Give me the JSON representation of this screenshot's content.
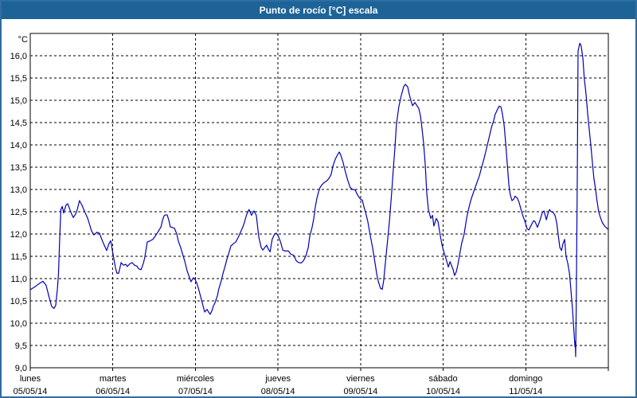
{
  "window": {
    "title": "Punto de rocío [°C] escala"
  },
  "colors": {
    "titlebar": "#1e6398",
    "border": "#2e6da0",
    "line": "#0000b4",
    "grid": "#000000",
    "text": "#000000"
  },
  "chart_data": {
    "type": "line",
    "title": "Punto de rocío [°C] escala",
    "y_unit_label": "°C",
    "ylim": [
      9.0,
      16.5
    ],
    "y_tick_step": 0.5,
    "y_tick_labels": [
      "16,0",
      "15,5",
      "15,0",
      "14,5",
      "14,0",
      "13,5",
      "13,0",
      "12,5",
      "12,0",
      "11,5",
      "11,0",
      "10,5",
      "10,0",
      "9,5",
      "9,0"
    ],
    "x_days": [
      {
        "name": "lunes",
        "date": "05/05/14"
      },
      {
        "name": "martes",
        "date": "06/05/14"
      },
      {
        "name": "miércoles",
        "date": "07/05/14"
      },
      {
        "name": "jueves",
        "date": "08/05/14"
      },
      {
        "name": "viernes",
        "date": "09/05/14"
      },
      {
        "name": "sábado",
        "date": "10/05/14"
      },
      {
        "name": "domingo",
        "date": "11/05/14"
      }
    ],
    "x_hours_total": 168,
    "grid": "dashed",
    "legend": "none",
    "series": [
      {
        "name": "Punto de rocío [°C]",
        "points": [
          [
            0.0,
            10.75
          ],
          [
            1.4,
            10.82
          ],
          [
            2.8,
            10.9
          ],
          [
            3.7,
            10.94
          ],
          [
            4.6,
            10.85
          ],
          [
            5.6,
            10.55
          ],
          [
            6.2,
            10.38
          ],
          [
            6.9,
            10.33
          ],
          [
            7.4,
            10.4
          ],
          [
            7.9,
            10.78
          ],
          [
            8.2,
            11.1
          ],
          [
            8.6,
            12.0
          ],
          [
            8.9,
            12.55
          ],
          [
            9.3,
            12.62
          ],
          [
            9.7,
            12.47
          ],
          [
            10.4,
            12.65
          ],
          [
            10.9,
            12.68
          ],
          [
            11.6,
            12.53
          ],
          [
            12.0,
            12.45
          ],
          [
            12.5,
            12.37
          ],
          [
            13.2,
            12.45
          ],
          [
            13.7,
            12.56
          ],
          [
            14.3,
            12.75
          ],
          [
            15.0,
            12.65
          ],
          [
            16.0,
            12.47
          ],
          [
            16.7,
            12.35
          ],
          [
            17.1,
            12.25
          ],
          [
            17.8,
            12.07
          ],
          [
            18.5,
            11.98
          ],
          [
            19.4,
            12.04
          ],
          [
            20.1,
            12.02
          ],
          [
            21.1,
            11.82
          ],
          [
            21.8,
            11.7
          ],
          [
            22.2,
            11.63
          ],
          [
            22.9,
            11.79
          ],
          [
            23.4,
            11.85
          ],
          [
            23.8,
            11.66
          ],
          [
            24.0,
            11.57
          ],
          [
            24.8,
            11.23
          ],
          [
            25.2,
            11.12
          ],
          [
            25.7,
            11.12
          ],
          [
            26.4,
            11.36
          ],
          [
            27.1,
            11.3
          ],
          [
            27.8,
            11.32
          ],
          [
            28.2,
            11.27
          ],
          [
            28.9,
            11.33
          ],
          [
            29.6,
            11.36
          ],
          [
            30.3,
            11.3
          ],
          [
            31.0,
            11.28
          ],
          [
            31.5,
            11.22
          ],
          [
            32.2,
            11.2
          ],
          [
            32.9,
            11.35
          ],
          [
            33.3,
            11.48
          ],
          [
            34.0,
            11.82
          ],
          [
            34.9,
            11.85
          ],
          [
            35.6,
            11.88
          ],
          [
            36.3,
            11.95
          ],
          [
            37.3,
            12.07
          ],
          [
            38.0,
            12.16
          ],
          [
            38.4,
            12.3
          ],
          [
            38.9,
            12.41
          ],
          [
            39.3,
            12.43
          ],
          [
            39.8,
            12.43
          ],
          [
            40.3,
            12.3
          ],
          [
            40.7,
            12.16
          ],
          [
            41.2,
            12.15
          ],
          [
            41.9,
            12.13
          ],
          [
            42.6,
            12.0
          ],
          [
            43.0,
            11.85
          ],
          [
            43.7,
            11.7
          ],
          [
            44.2,
            11.57
          ],
          [
            44.9,
            11.39
          ],
          [
            45.6,
            11.17
          ],
          [
            46.3,
            11.02
          ],
          [
            46.7,
            10.93
          ],
          [
            47.4,
            11.02
          ],
          [
            47.9,
            10.98
          ],
          [
            48.4,
            10.9
          ],
          [
            48.8,
            10.8
          ],
          [
            49.5,
            10.6
          ],
          [
            50.0,
            10.45
          ],
          [
            50.7,
            10.25
          ],
          [
            51.4,
            10.31
          ],
          [
            51.8,
            10.25
          ],
          [
            52.3,
            10.2
          ],
          [
            52.8,
            10.28
          ],
          [
            53.2,
            10.38
          ],
          [
            53.7,
            10.46
          ],
          [
            54.4,
            10.62
          ],
          [
            54.8,
            10.77
          ],
          [
            55.5,
            10.95
          ],
          [
            56.0,
            11.11
          ],
          [
            56.7,
            11.3
          ],
          [
            57.2,
            11.45
          ],
          [
            57.9,
            11.62
          ],
          [
            58.3,
            11.73
          ],
          [
            59.0,
            11.78
          ],
          [
            59.7,
            11.82
          ],
          [
            60.4,
            11.92
          ],
          [
            61.1,
            12.04
          ],
          [
            61.8,
            12.16
          ],
          [
            62.2,
            12.25
          ],
          [
            62.9,
            12.44
          ],
          [
            63.6,
            12.55
          ],
          [
            64.3,
            12.42
          ],
          [
            65.0,
            12.52
          ],
          [
            65.7,
            12.42
          ],
          [
            66.4,
            11.94
          ],
          [
            67.1,
            11.7
          ],
          [
            67.6,
            11.64
          ],
          [
            68.0,
            11.68
          ],
          [
            68.7,
            11.75
          ],
          [
            69.2,
            11.66
          ],
          [
            69.7,
            11.6
          ],
          [
            70.3,
            11.88
          ],
          [
            71.0,
            12.0
          ],
          [
            71.5,
            12.02
          ],
          [
            72.0,
            11.97
          ],
          [
            72.7,
            11.83
          ],
          [
            73.4,
            11.64
          ],
          [
            74.0,
            11.62
          ],
          [
            75.0,
            11.62
          ],
          [
            75.7,
            11.55
          ],
          [
            76.6,
            11.52
          ],
          [
            77.3,
            11.4
          ],
          [
            78.0,
            11.36
          ],
          [
            78.7,
            11.35
          ],
          [
            79.4,
            11.4
          ],
          [
            80.1,
            11.51
          ],
          [
            80.8,
            11.7
          ],
          [
            81.2,
            11.94
          ],
          [
            81.9,
            12.15
          ],
          [
            82.4,
            12.35
          ],
          [
            82.8,
            12.59
          ],
          [
            83.3,
            12.8
          ],
          [
            83.8,
            12.95
          ],
          [
            84.2,
            13.04
          ],
          [
            84.7,
            13.1
          ],
          [
            85.2,
            13.14
          ],
          [
            85.9,
            13.18
          ],
          [
            86.3,
            13.2
          ],
          [
            87.0,
            13.27
          ],
          [
            87.5,
            13.35
          ],
          [
            87.9,
            13.51
          ],
          [
            88.6,
            13.67
          ],
          [
            89.1,
            13.75
          ],
          [
            89.8,
            13.84
          ],
          [
            90.2,
            13.78
          ],
          [
            90.9,
            13.61
          ],
          [
            91.6,
            13.39
          ],
          [
            92.3,
            13.2
          ],
          [
            93.0,
            13.04
          ],
          [
            93.7,
            13.0
          ],
          [
            94.4,
            12.99
          ],
          [
            95.1,
            12.88
          ],
          [
            95.6,
            12.82
          ],
          [
            96.0,
            12.78
          ],
          [
            96.5,
            12.76
          ],
          [
            97.0,
            12.6
          ],
          [
            97.4,
            12.5
          ],
          [
            98.1,
            12.28
          ],
          [
            98.8,
            11.97
          ],
          [
            99.5,
            11.69
          ],
          [
            100.2,
            11.35
          ],
          [
            100.7,
            11.1
          ],
          [
            101.1,
            10.95
          ],
          [
            101.8,
            10.78
          ],
          [
            102.3,
            10.76
          ],
          [
            102.7,
            10.95
          ],
          [
            103.2,
            11.35
          ],
          [
            103.9,
            11.9
          ],
          [
            104.4,
            12.3
          ],
          [
            105.1,
            13.0
          ],
          [
            105.5,
            13.45
          ],
          [
            106.0,
            13.95
          ],
          [
            106.4,
            14.45
          ],
          [
            107.1,
            14.85
          ],
          [
            107.8,
            15.1
          ],
          [
            108.5,
            15.3
          ],
          [
            109.0,
            15.36
          ],
          [
            109.7,
            15.3
          ],
          [
            110.1,
            15.15
          ],
          [
            110.6,
            15.0
          ],
          [
            111.1,
            14.88
          ],
          [
            111.8,
            14.95
          ],
          [
            112.2,
            14.9
          ],
          [
            112.9,
            14.82
          ],
          [
            113.4,
            14.65
          ],
          [
            113.8,
            14.4
          ],
          [
            114.3,
            14.05
          ],
          [
            114.8,
            13.55
          ],
          [
            115.2,
            12.95
          ],
          [
            115.7,
            12.55
          ],
          [
            116.4,
            12.35
          ],
          [
            116.9,
            12.42
          ],
          [
            117.3,
            12.18
          ],
          [
            118.0,
            12.35
          ],
          [
            118.5,
            12.28
          ],
          [
            119.2,
            11.95
          ],
          [
            119.6,
            11.78
          ],
          [
            120.0,
            11.65
          ],
          [
            120.6,
            11.5
          ],
          [
            121.0,
            11.4
          ],
          [
            121.5,
            11.26
          ],
          [
            122.0,
            11.38
          ],
          [
            122.4,
            11.3
          ],
          [
            122.9,
            11.2
          ],
          [
            123.3,
            11.07
          ],
          [
            123.8,
            11.15
          ],
          [
            124.3,
            11.32
          ],
          [
            124.7,
            11.5
          ],
          [
            125.4,
            11.8
          ],
          [
            126.1,
            12.0
          ],
          [
            126.8,
            12.35
          ],
          [
            127.5,
            12.6
          ],
          [
            128.2,
            12.8
          ],
          [
            129.1,
            13.0
          ],
          [
            129.8,
            13.15
          ],
          [
            130.5,
            13.3
          ],
          [
            131.2,
            13.5
          ],
          [
            131.9,
            13.7
          ],
          [
            132.6,
            13.92
          ],
          [
            133.3,
            14.15
          ],
          [
            134.0,
            14.38
          ],
          [
            134.7,
            14.55
          ],
          [
            135.1,
            14.68
          ],
          [
            135.8,
            14.8
          ],
          [
            136.3,
            14.87
          ],
          [
            136.8,
            14.85
          ],
          [
            137.2,
            14.7
          ],
          [
            137.7,
            14.45
          ],
          [
            138.1,
            14.1
          ],
          [
            138.6,
            13.6
          ],
          [
            139.1,
            13.1
          ],
          [
            139.5,
            12.88
          ],
          [
            140.0,
            12.75
          ],
          [
            140.5,
            12.78
          ],
          [
            140.9,
            12.85
          ],
          [
            141.6,
            12.8
          ],
          [
            142.1,
            12.7
          ],
          [
            142.8,
            12.5
          ],
          [
            143.2,
            12.4
          ],
          [
            143.9,
            12.25
          ],
          [
            144.4,
            12.12
          ],
          [
            144.9,
            12.09
          ],
          [
            145.6,
            12.2
          ],
          [
            146.3,
            12.3
          ],
          [
            146.7,
            12.28
          ],
          [
            147.4,
            12.15
          ],
          [
            148.1,
            12.3
          ],
          [
            148.8,
            12.48
          ],
          [
            149.3,
            12.52
          ],
          [
            150.0,
            12.32
          ],
          [
            150.4,
            12.45
          ],
          [
            150.9,
            12.55
          ],
          [
            151.4,
            12.5
          ],
          [
            152.0,
            12.48
          ],
          [
            152.5,
            12.42
          ],
          [
            153.0,
            12.25
          ],
          [
            153.4,
            12.0
          ],
          [
            153.9,
            11.7
          ],
          [
            154.4,
            11.63
          ],
          [
            154.8,
            11.78
          ],
          [
            155.3,
            11.88
          ],
          [
            155.7,
            11.5
          ],
          [
            156.2,
            11.35
          ],
          [
            156.7,
            11.12
          ],
          [
            157.1,
            10.77
          ],
          [
            157.6,
            10.3
          ],
          [
            158.1,
            9.7
          ],
          [
            158.3,
            9.47
          ],
          [
            158.4,
            9.58
          ],
          [
            158.5,
            9.25
          ],
          [
            158.7,
            10.6
          ],
          [
            159.0,
            13.5
          ],
          [
            159.2,
            16.1
          ],
          [
            159.7,
            16.28
          ],
          [
            160.1,
            16.22
          ],
          [
            160.6,
            15.95
          ],
          [
            161.0,
            15.5
          ],
          [
            161.5,
            15.15
          ],
          [
            162.0,
            14.7
          ],
          [
            162.4,
            14.38
          ],
          [
            162.9,
            14.0
          ],
          [
            163.4,
            13.58
          ],
          [
            163.8,
            13.25
          ],
          [
            164.3,
            13.0
          ],
          [
            164.7,
            12.75
          ],
          [
            165.2,
            12.5
          ],
          [
            165.7,
            12.37
          ],
          [
            166.3,
            12.25
          ],
          [
            167.0,
            12.17
          ],
          [
            168.0,
            12.1
          ]
        ]
      }
    ]
  }
}
